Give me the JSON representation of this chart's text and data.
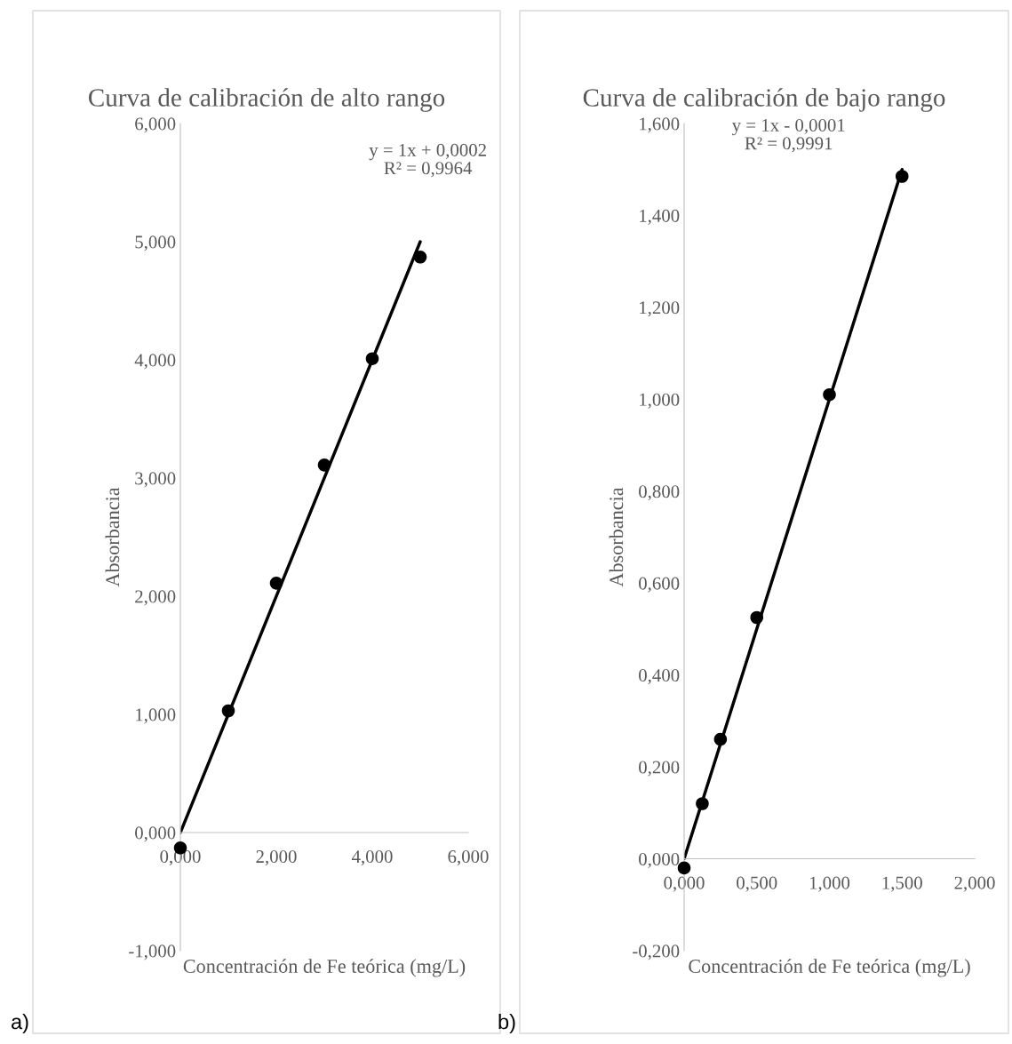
{
  "chart_data": [
    {
      "type": "scatter",
      "title": "Curva de calibración de alto rango",
      "xlabel": "Concentración de Fe teórica (mg/L)",
      "ylabel": "Absorbancia",
      "annotations": [
        "a)",
        "y = 1x + 0,0002\nR² = 0,9964"
      ],
      "xlim": [
        0,
        6
      ],
      "ylim": [
        -1,
        6
      ],
      "xticks": [
        {
          "value": 0,
          "label": "0,000"
        },
        {
          "value": 2,
          "label": "2,000"
        },
        {
          "value": 4,
          "label": "4,000"
        },
        {
          "value": 6,
          "label": "6,000"
        }
      ],
      "yticks": [
        {
          "value": -1,
          "label": "-1,000"
        },
        {
          "value": 0,
          "label": "0,000"
        },
        {
          "value": 1,
          "label": "1,000"
        },
        {
          "value": 2,
          "label": "2,000"
        },
        {
          "value": 3,
          "label": "3,000"
        },
        {
          "value": 4,
          "label": "4,000"
        },
        {
          "value": 5,
          "label": "5,000"
        },
        {
          "value": 6,
          "label": "6,000"
        }
      ],
      "grid": false,
      "legend": false,
      "series": [
        {
          "color": "#000000",
          "marker": "circle",
          "x": [
            0,
            1,
            2,
            3,
            4,
            5
          ],
          "values": [
            -0.13,
            1.03,
            2.11,
            3.11,
            4.01,
            4.87
          ]
        },
        {
          "type": "line",
          "color": "#000000",
          "marker": "none",
          "x": [
            0,
            5
          ],
          "values": [
            0,
            5
          ]
        }
      ]
    },
    {
      "type": "scatter",
      "title": "Curva de calibración de bajo rango",
      "xlabel": "Concentración de Fe teórica (mg/L)",
      "ylabel": "Absorbancia",
      "annotations": [
        "b)",
        "y = 1x - 0,0001\nR² = 0,9991"
      ],
      "xlim": [
        0,
        2
      ],
      "ylim": [
        -0.2,
        1.6
      ],
      "xticks": [
        {
          "value": 0,
          "label": "0,000"
        },
        {
          "value": 0.5,
          "label": "0,500"
        },
        {
          "value": 1,
          "label": "1,000"
        },
        {
          "value": 1.5,
          "label": "1,500"
        },
        {
          "value": 2,
          "label": "2,000"
        }
      ],
      "yticks": [
        {
          "value": -0.2,
          "label": "-0,200"
        },
        {
          "value": 0,
          "label": "0,000"
        },
        {
          "value": 0.2,
          "label": "0,200"
        },
        {
          "value": 0.4,
          "label": "0,400"
        },
        {
          "value": 0.6,
          "label": "0,600"
        },
        {
          "value": 0.8,
          "label": "0,800"
        },
        {
          "value": 1,
          "label": "1,000"
        },
        {
          "value": 1.2,
          "label": "1,200"
        },
        {
          "value": 1.4,
          "label": "1,400"
        },
        {
          "value": 1.6,
          "label": "1,600"
        }
      ],
      "grid": false,
      "legend": false,
      "series": [
        {
          "color": "#000000",
          "marker": "circle",
          "x": [
            0,
            0.125,
            0.25,
            0.5,
            1,
            1.5
          ],
          "values": [
            -0.02,
            0.12,
            0.26,
            0.525,
            1.01,
            1.485
          ]
        },
        {
          "type": "line",
          "color": "#000000",
          "marker": "none",
          "x": [
            0,
            1.5
          ],
          "values": [
            0,
            1.5
          ]
        }
      ]
    }
  ]
}
